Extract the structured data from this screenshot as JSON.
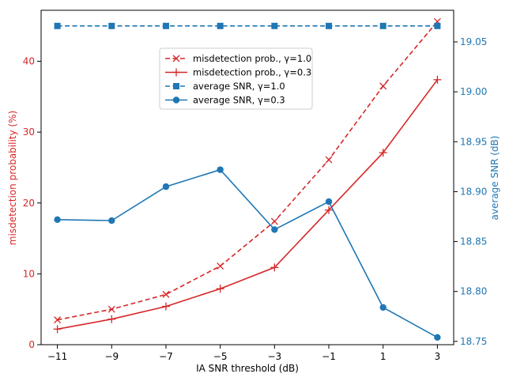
{
  "chart_data": {
    "type": "line",
    "title": "",
    "xlabel": "IA SNR threshold (dB)",
    "ylabel_left": "misdetection probability (%)",
    "ylabel_right": "average SNR (dB)",
    "x": [
      -11,
      -9,
      -7,
      -5,
      -3,
      -1,
      1,
      3
    ],
    "x_tick_labels": [
      "−11",
      "−9",
      "−7",
      "−5",
      "−3",
      "−1",
      "1",
      "3"
    ],
    "xlim": [
      -11.6,
      3.6
    ],
    "ylim_left": [
      0,
      47.2
    ],
    "ylim_right": [
      18.7467,
      19.0817
    ],
    "left_ticks": [
      0,
      10,
      20,
      30,
      40
    ],
    "right_ticks": [
      18.75,
      18.8,
      18.85,
      18.9,
      18.95,
      19.0,
      19.05
    ],
    "right_tick_labels": [
      "18.75",
      "18.80",
      "18.85",
      "18.90",
      "18.95",
      "19.00",
      "19.05"
    ],
    "grid": false,
    "legend_position": "upper-center",
    "colors": {
      "left_axis": "#d62728",
      "right_axis": "#1f77b4"
    },
    "series": [
      {
        "name": "misdetection prob., γ=1.0",
        "axis": "left",
        "color": "#d62728",
        "linestyle": "dashed",
        "marker": "x",
        "values": [
          3.5,
          5.0,
          7.1,
          11.1,
          17.4,
          26.1,
          36.5,
          45.6
        ]
      },
      {
        "name": "misdetection prob., γ=0.3",
        "axis": "left",
        "color": "#d62728",
        "linestyle": "solid",
        "marker": "+",
        "values": [
          2.2,
          3.6,
          5.4,
          7.9,
          10.9,
          19.0,
          27.1,
          37.4
        ]
      },
      {
        "name": "average SNR, γ=1.0",
        "axis": "right",
        "color": "#1f77b4",
        "linestyle": "dashed",
        "marker": "square",
        "values": [
          19.066,
          19.066,
          19.066,
          19.066,
          19.066,
          19.066,
          19.066,
          19.066
        ]
      },
      {
        "name": "average SNR, γ=0.3",
        "axis": "right",
        "color": "#1f77b4",
        "linestyle": "solid",
        "marker": "circle",
        "values": [
          18.872,
          18.871,
          18.905,
          18.922,
          18.862,
          18.89,
          18.784,
          18.754
        ]
      }
    ]
  }
}
